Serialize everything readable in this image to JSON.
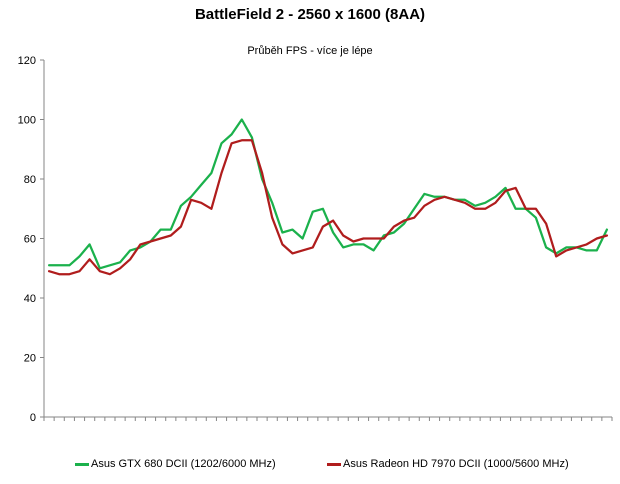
{
  "chart_data": {
    "type": "line",
    "title": "BattleField 2 - 2560 x 1600 (8AA)",
    "subtitle": "Průběh FPS - více je lépe",
    "ylim": [
      0,
      120
    ],
    "yticks": [
      "0",
      "20",
      "40",
      "60",
      "80",
      "100",
      "120"
    ],
    "grid": false,
    "legend_position": "bottom",
    "series": [
      {
        "name": "Asus GTX 680 DCII (1202/6000 MHz)",
        "color": "#1bb14c",
        "values": [
          51,
          51,
          51,
          54,
          58,
          50,
          51,
          52,
          56,
          57,
          59,
          63,
          63,
          71,
          74,
          78,
          82,
          92,
          95,
          100,
          94,
          80,
          72,
          62,
          63,
          60,
          69,
          70,
          62,
          57,
          58,
          58,
          56,
          61,
          62,
          65,
          70,
          75,
          74,
          74,
          73,
          73,
          71,
          72,
          74,
          77,
          70,
          70,
          67,
          57,
          55,
          57,
          57,
          56,
          56,
          63
        ]
      },
      {
        "name": "Asus Radeon HD 7970 DCII (1000/5600 MHz)",
        "color": "#b01d1d",
        "values": [
          49,
          48,
          48,
          49,
          53,
          49,
          48,
          50,
          53,
          58,
          59,
          60,
          61,
          64,
          73,
          72,
          70,
          82,
          92,
          93,
          93,
          82,
          67,
          58,
          55,
          56,
          57,
          64,
          66,
          61,
          59,
          60,
          60,
          60,
          64,
          66,
          67,
          71,
          73,
          74,
          73,
          72,
          70,
          70,
          72,
          76,
          77,
          70,
          70,
          65,
          54,
          56,
          57,
          58,
          60,
          61
        ]
      }
    ]
  }
}
